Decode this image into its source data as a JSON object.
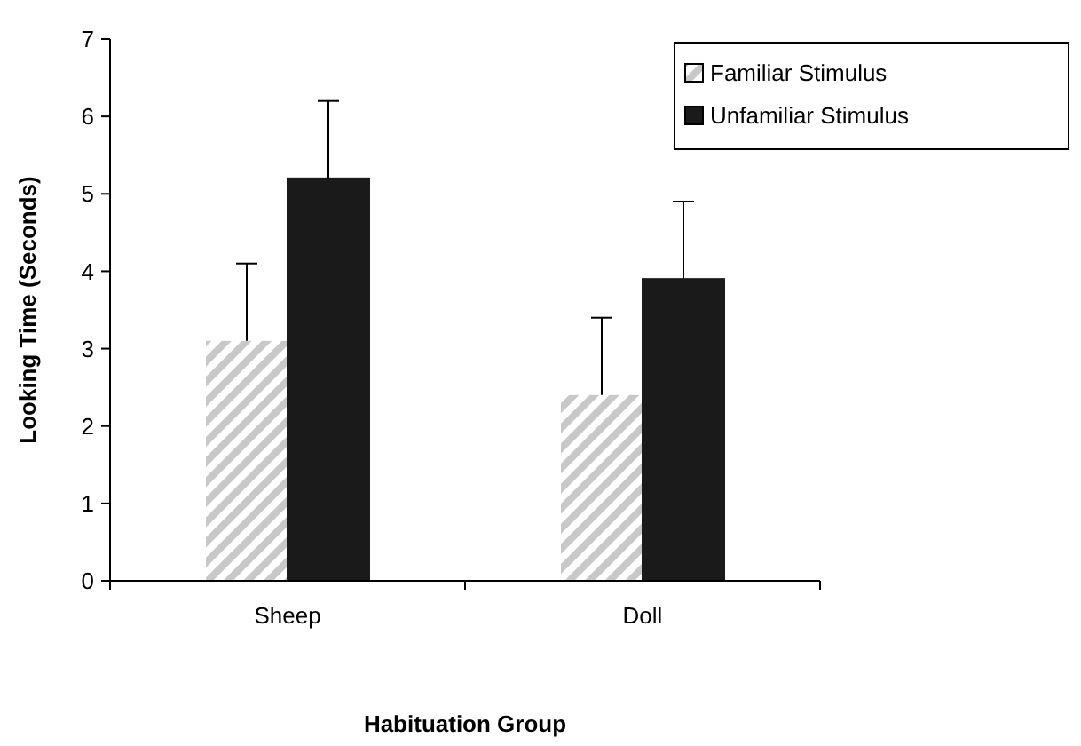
{
  "chart_data": {
    "type": "bar",
    "xlabel": "Habituation Group",
    "ylabel": "Looking Time (Seconds)",
    "categories": [
      "Sheep",
      "Doll"
    ],
    "series": [
      {
        "name": "Familiar Stimulus",
        "color": "#c8c8c8",
        "values": [
          3.1,
          2.4
        ],
        "errors": [
          [
            3.1,
            4.1
          ],
          [
            2.4,
            3.4
          ]
        ]
      },
      {
        "name": "Unfamiliar Stimulus",
        "color": "#1a1a1a",
        "values": [
          5.2,
          3.9
        ],
        "errors": [
          [
            5.2,
            6.2
          ],
          [
            3.9,
            4.9
          ]
        ]
      }
    ],
    "ylim": [
      0,
      7
    ],
    "yticks": [
      0,
      1,
      2,
      3,
      4,
      5,
      6,
      7
    ],
    "grid": false,
    "legend": "top right"
  }
}
